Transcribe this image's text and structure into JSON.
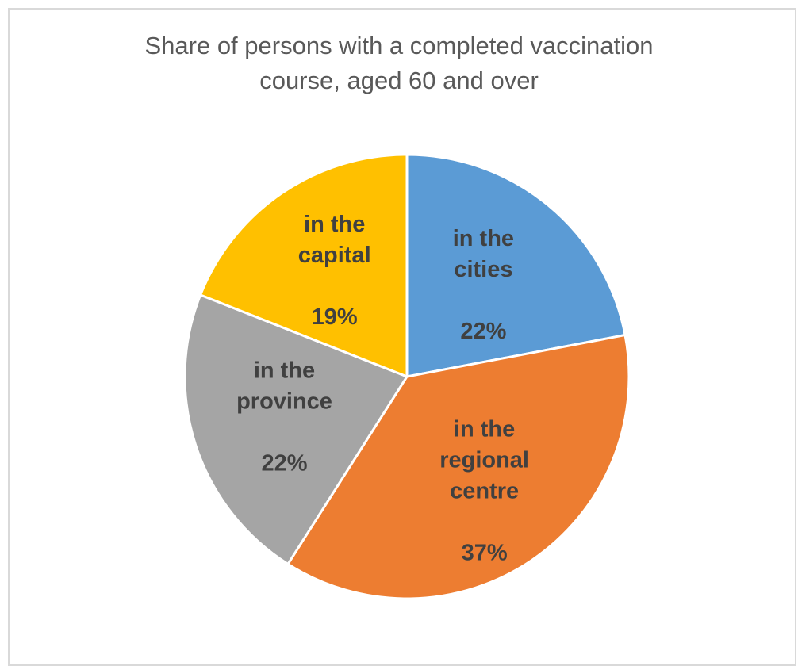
{
  "chart_data": {
    "type": "pie",
    "title": "Share of persons with a completed vaccination course, aged 60 and over",
    "title_lines": [
      "Share of persons with a completed vaccination",
      "course, aged 60 and over"
    ],
    "slices": [
      {
        "label": "in the cities",
        "label_lines": [
          "in the",
          "cities"
        ],
        "value": 22,
        "value_label": "22%",
        "color": "#5b9bd5"
      },
      {
        "label": "in the regional centre",
        "label_lines": [
          "in the",
          "regional",
          "centre"
        ],
        "value": 37,
        "value_label": "37%",
        "color": "#ed7d31"
      },
      {
        "label": "in the province",
        "label_lines": [
          "in the",
          "province"
        ],
        "value": 22,
        "value_label": "22%",
        "color": "#a5a5a5"
      },
      {
        "label": "in the capital",
        "label_lines": [
          "in the",
          "capital"
        ],
        "value": 19,
        "value_label": "19%",
        "color": "#ffc000"
      }
    ],
    "start_angle": "12 o'clock",
    "direction": "clockwise",
    "legend": "none",
    "data_labels": "inside slices"
  }
}
